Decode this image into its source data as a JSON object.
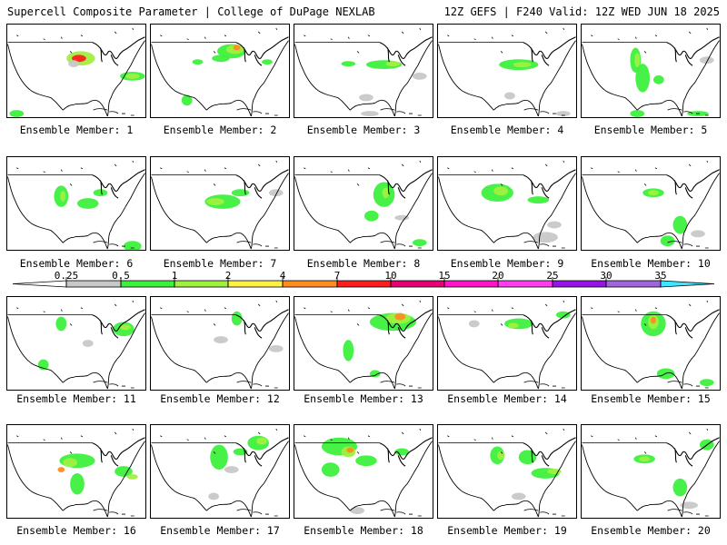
{
  "header": {
    "title": "Supercell Composite Parameter | College of DuPage NEXLAB",
    "run_info": "12Z GEFS | F240 Valid: 12Z WED JUN 18 2025"
  },
  "colorbar": {
    "labels": [
      "0.25",
      "0.5",
      "1",
      "2",
      "4",
      "7",
      "10",
      "15",
      "20",
      "25",
      "30",
      "35"
    ],
    "colors": [
      "#c8c8c8",
      "#3ef03e",
      "#a0f040",
      "#fff044",
      "#ff8c1e",
      "#ff1e1e",
      "#e60073",
      "#ff14c8",
      "#ff3cf0",
      "#9614e6",
      "#a064dc",
      "#40e6ff"
    ]
  },
  "panels": [
    {
      "label": "Ensemble Member: 1"
    },
    {
      "label": "Ensemble Member: 2"
    },
    {
      "label": "Ensemble Member: 3"
    },
    {
      "label": "Ensemble Member: 4"
    },
    {
      "label": "Ensemble Member: 5"
    },
    {
      "label": "Ensemble Member: 6"
    },
    {
      "label": "Ensemble Member: 7"
    },
    {
      "label": "Ensemble Member: 8"
    },
    {
      "label": "Ensemble Member: 9"
    },
    {
      "label": "Ensemble Member: 10"
    },
    {
      "label": "Ensemble Member: 11"
    },
    {
      "label": "Ensemble Member: 12"
    },
    {
      "label": "Ensemble Member: 13"
    },
    {
      "label": "Ensemble Member: 14"
    },
    {
      "label": "Ensemble Member: 15"
    },
    {
      "label": "Ensemble Member: 16"
    },
    {
      "label": "Ensemble Member: 17"
    },
    {
      "label": "Ensemble Member: 18"
    },
    {
      "label": "Ensemble Member: 19"
    },
    {
      "label": "Ensemble Member: 20"
    }
  ]
}
